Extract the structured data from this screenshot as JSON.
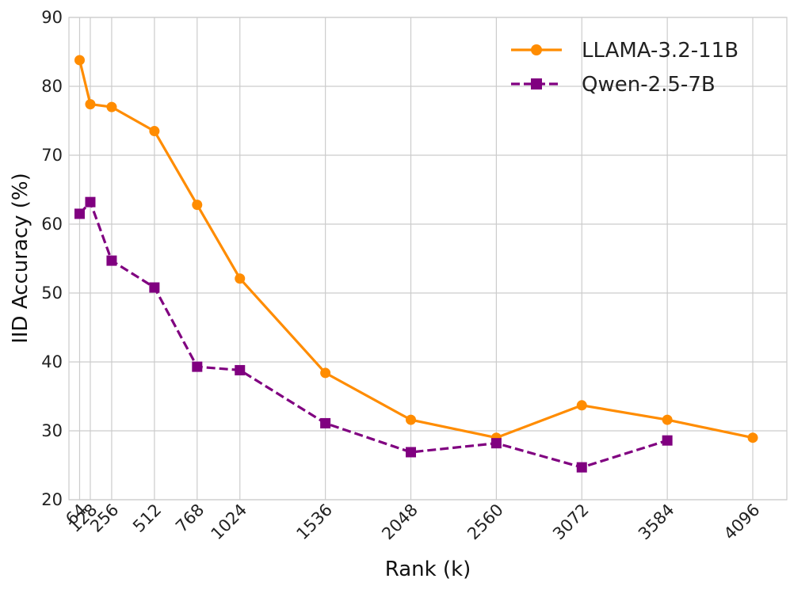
{
  "chart_data": {
    "type": "line",
    "title": "",
    "xlabel": "Rank (k)",
    "ylabel": "IID Accuracy (%)",
    "xlim": [
      0,
      4300
    ],
    "ylim": [
      20,
      90
    ],
    "xticks": [
      64,
      128,
      256,
      512,
      768,
      1024,
      1536,
      2048,
      2560,
      3072,
      3584,
      4096
    ],
    "yticks": [
      20,
      30,
      40,
      50,
      60,
      70,
      80,
      90
    ],
    "grid": true,
    "legend_position": "top-right",
    "series": [
      {
        "name": "LLAMA-3.2-11B",
        "color": "#ff8c00",
        "linestyle": "solid",
        "marker": "circle",
        "x": [
          64,
          128,
          256,
          512,
          768,
          1024,
          1536,
          2048,
          2560,
          3072,
          3584,
          4096
        ],
        "values": [
          83.8,
          77.4,
          77.0,
          73.5,
          62.8,
          52.1,
          38.4,
          31.6,
          29.0,
          33.7,
          31.6,
          29.0
        ]
      },
      {
        "name": "Qwen-2.5-7B",
        "color": "#800080",
        "linestyle": "dashed",
        "marker": "square",
        "x": [
          64,
          128,
          256,
          512,
          768,
          1024,
          1536,
          2048,
          2560,
          3072,
          3584
        ],
        "values": [
          61.5,
          63.2,
          54.7,
          50.8,
          39.3,
          38.8,
          31.1,
          26.9,
          28.2,
          24.7,
          28.6
        ]
      }
    ]
  }
}
